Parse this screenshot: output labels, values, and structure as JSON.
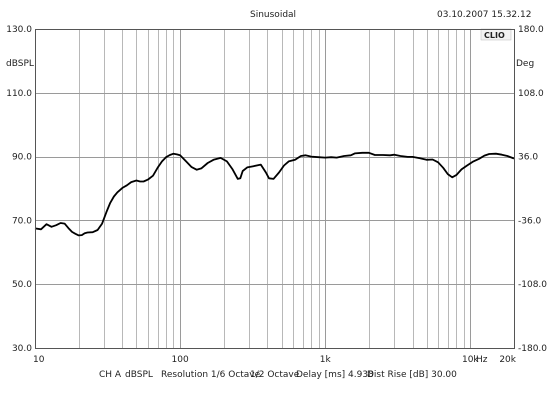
{
  "window": {
    "title": "Sinusoidal",
    "timestamp": "03.10.2007 15.32.12",
    "logo": "CLIO"
  },
  "chart_data": {
    "type": "line",
    "x_scale": "log",
    "xlim": [
      10,
      20000
    ],
    "ylim": [
      30,
      130
    ],
    "y2lim": [
      -180,
      180
    ],
    "ylabel": "dBSPL",
    "y2label": "Deg",
    "x_unit_label": "Hz",
    "grid": true,
    "y_ticks": [
      "30.0",
      "50.0",
      "70.0",
      "90.0",
      "110.0",
      "130.0"
    ],
    "y_tick_values": [
      30,
      50,
      70,
      90,
      110,
      130
    ],
    "y2_ticks": [
      "-180.0",
      "-108.0",
      "-36.0",
      "36.0",
      "108.0",
      "180.0"
    ],
    "y2_tick_values": [
      -180,
      -108,
      -36,
      36,
      108,
      180
    ],
    "x_ticks": [
      {
        "label": "10",
        "value": 10
      },
      {
        "label": "100",
        "value": 100
      },
      {
        "label": "1k",
        "value": 1000
      },
      {
        "label": "10k",
        "value": 10000
      },
      {
        "label": "20k",
        "value": 20000
      }
    ],
    "series": [
      {
        "color": "#000000",
        "points": [
          [
            10,
            67.5
          ],
          [
            11,
            67.2
          ],
          [
            12,
            68.8
          ],
          [
            13,
            68.0
          ],
          [
            14,
            68.5
          ],
          [
            15,
            69.2
          ],
          [
            16,
            69.0
          ],
          [
            17,
            67.6
          ],
          [
            18,
            66.4
          ],
          [
            19,
            65.8
          ],
          [
            20,
            65.3
          ],
          [
            21,
            65.4
          ],
          [
            22,
            66.0
          ],
          [
            23,
            66.2
          ],
          [
            25,
            66.3
          ],
          [
            27,
            67.0
          ],
          [
            29,
            69.0
          ],
          [
            31,
            72.5
          ],
          [
            33,
            75.5
          ],
          [
            35,
            77.5
          ],
          [
            37,
            78.8
          ],
          [
            40,
            80.2
          ],
          [
            43,
            81.0
          ],
          [
            46,
            82.0
          ],
          [
            50,
            82.5
          ],
          [
            53,
            82.2
          ],
          [
            56,
            82.2
          ],
          [
            60,
            82.8
          ],
          [
            65,
            84.0
          ],
          [
            70,
            86.5
          ],
          [
            75,
            88.5
          ],
          [
            80,
            89.8
          ],
          [
            85,
            90.5
          ],
          [
            90,
            90.9
          ],
          [
            95,
            90.7
          ],
          [
            100,
            90.4
          ],
          [
            110,
            88.5
          ],
          [
            120,
            86.7
          ],
          [
            130,
            85.9
          ],
          [
            140,
            86.3
          ],
          [
            155,
            88.0
          ],
          [
            170,
            89.0
          ],
          [
            190,
            89.6
          ],
          [
            210,
            88.5
          ],
          [
            230,
            86.0
          ],
          [
            250,
            83.0
          ],
          [
            260,
            83.2
          ],
          [
            270,
            85.5
          ],
          [
            290,
            86.6
          ],
          [
            320,
            87.0
          ],
          [
            360,
            87.5
          ],
          [
            390,
            85.0
          ],
          [
            410,
            83.2
          ],
          [
            440,
            83.0
          ],
          [
            480,
            85.0
          ],
          [
            520,
            87.2
          ],
          [
            560,
            88.5
          ],
          [
            620,
            89.0
          ],
          [
            680,
            90.2
          ],
          [
            730,
            90.4
          ],
          [
            800,
            90.0
          ],
          [
            900,
            89.8
          ],
          [
            1000,
            89.7
          ],
          [
            1100,
            89.8
          ],
          [
            1200,
            89.7
          ],
          [
            1350,
            90.2
          ],
          [
            1500,
            90.4
          ],
          [
            1600,
            91.0
          ],
          [
            1800,
            91.2
          ],
          [
            2000,
            91.2
          ],
          [
            2200,
            90.5
          ],
          [
            2500,
            90.5
          ],
          [
            2800,
            90.4
          ],
          [
            3000,
            90.6
          ],
          [
            3300,
            90.2
          ],
          [
            3700,
            89.9
          ],
          [
            4000,
            89.9
          ],
          [
            4500,
            89.5
          ],
          [
            5000,
            89.0
          ],
          [
            5500,
            89.1
          ],
          [
            6000,
            88.2
          ],
          [
            6500,
            86.5
          ],
          [
            7000,
            84.5
          ],
          [
            7500,
            83.5
          ],
          [
            8000,
            84.2
          ],
          [
            8700,
            86.0
          ],
          [
            9500,
            87.2
          ],
          [
            10500,
            88.5
          ],
          [
            11500,
            89.3
          ],
          [
            12500,
            90.3
          ],
          [
            13500,
            90.8
          ],
          [
            15000,
            90.9
          ],
          [
            16500,
            90.6
          ],
          [
            18000,
            90.2
          ],
          [
            20000,
            89.4
          ]
        ]
      }
    ]
  },
  "footer": {
    "channel": "CH A",
    "units": "dBSPL",
    "resolution": "Resolution 1/6 Octave",
    "smoothing": "1/2 Octave",
    "delay": "Delay [ms] 4.938",
    "dist_rise": "Dist Rise [dB] 30.00"
  }
}
